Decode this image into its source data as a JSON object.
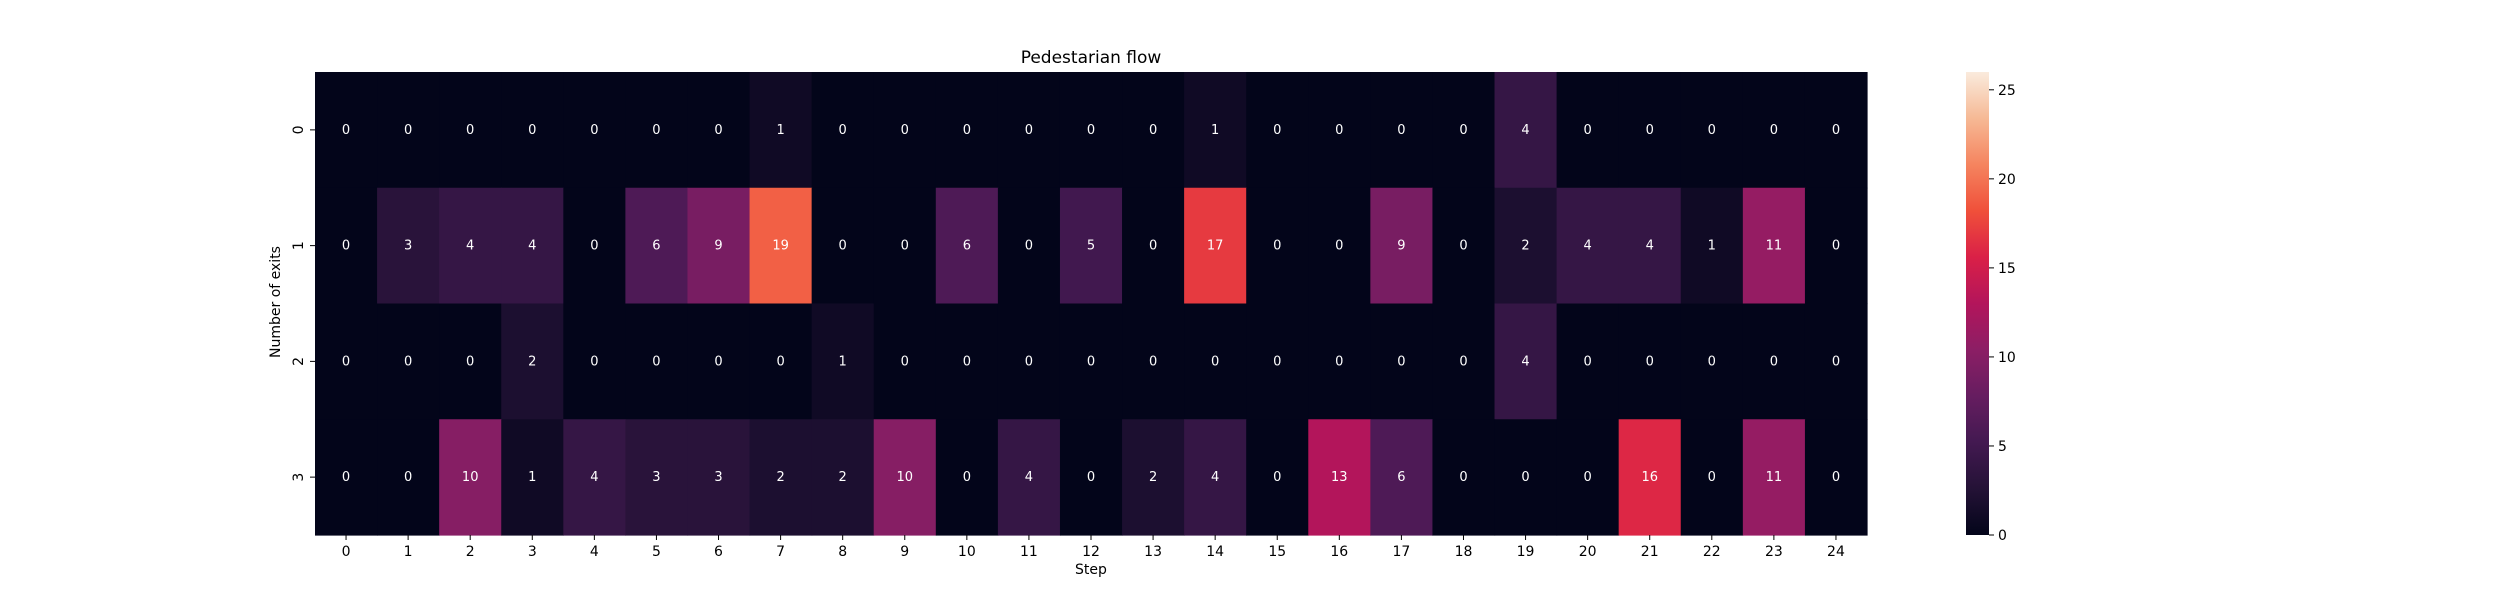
{
  "chart_data": {
    "type": "heatmap",
    "title": "Pedestarian flow",
    "xlabel": "Step",
    "ylabel": "Number of exits",
    "x_categories": [
      "0",
      "1",
      "2",
      "3",
      "4",
      "5",
      "6",
      "7",
      "8",
      "9",
      "10",
      "11",
      "12",
      "13",
      "14",
      "15",
      "16",
      "17",
      "18",
      "19",
      "20",
      "21",
      "22",
      "23",
      "24"
    ],
    "y_categories": [
      "0",
      "1",
      "2",
      "3"
    ],
    "values": [
      [
        0,
        0,
        0,
        0,
        0,
        0,
        0,
        1,
        0,
        0,
        0,
        0,
        0,
        0,
        1,
        0,
        0,
        0,
        0,
        4,
        0,
        0,
        0,
        0,
        0
      ],
      [
        0,
        3,
        4,
        4,
        0,
        6,
        9,
        19,
        0,
        0,
        6,
        0,
        5,
        0,
        17,
        0,
        0,
        9,
        0,
        2,
        4,
        4,
        1,
        11,
        0
      ],
      [
        0,
        0,
        0,
        2,
        0,
        0,
        0,
        0,
        1,
        0,
        0,
        0,
        0,
        0,
        0,
        0,
        0,
        0,
        0,
        4,
        0,
        0,
        0,
        0,
        0
      ],
      [
        0,
        0,
        10,
        1,
        4,
        3,
        3,
        2,
        2,
        10,
        0,
        4,
        0,
        2,
        4,
        0,
        13,
        6,
        0,
        0,
        0,
        16,
        0,
        11,
        0
      ]
    ],
    "annotated": true,
    "colormap": "rocket",
    "colorbar": {
      "range": [
        0,
        26
      ],
      "ticks": [
        0,
        5,
        10,
        15,
        20,
        25
      ]
    }
  }
}
